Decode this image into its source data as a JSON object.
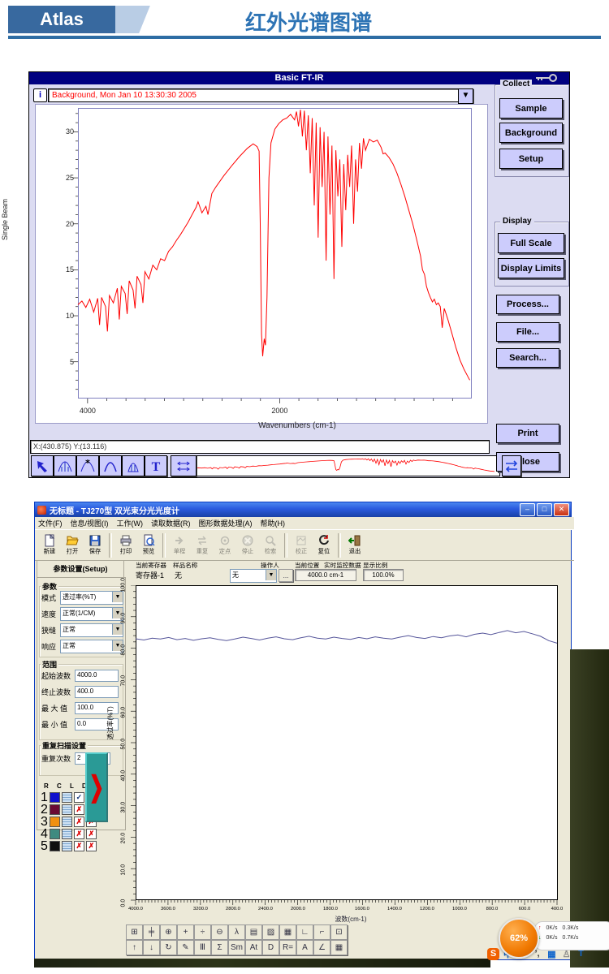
{
  "header": {
    "logo": "Atlas",
    "title": "红外光谱图谱"
  },
  "ftir": {
    "window_title": "Basic FT-IR",
    "info_button": "i",
    "spectrum_field": "Background, Mon Jan 10 13:30:30 2005",
    "status": "X:(430.875) Y:(13.116)",
    "axis": {
      "ylabel": "Single Beam",
      "xlabel": "Wavenumbers (cm-1)"
    },
    "groups": [
      {
        "label": "Collect",
        "buttons": [
          "Sample",
          "Background",
          "Setup"
        ]
      },
      {
        "label": "Display",
        "buttons": [
          "Full Scale",
          "Display Limits"
        ]
      }
    ],
    "side_buttons": [
      "Process...",
      "File...",
      "Search..."
    ],
    "bottom_buttons": [
      "Print",
      "Close"
    ],
    "toolbar_icons": [
      "cursor-arrow",
      "peak-hatched",
      "peak-pick",
      "peak-outline",
      "peak-filled",
      "text-tool",
      "expand-x"
    ],
    "swap_icon": "swap-arrows"
  },
  "tj270": {
    "window_title": "无标题 - TJ270型 双光束分光光度计",
    "caption_buttons": [
      "–",
      "□",
      "✕"
    ],
    "menu": [
      "文件(F)",
      "信息/视图(I)",
      "工作(W)",
      "读取数据(R)",
      "图形数据处理(A)",
      "帮助(H)"
    ],
    "toolbar": [
      {
        "label": "新建",
        "icon": "new",
        "enabled": true
      },
      {
        "label": "打开",
        "icon": "open",
        "enabled": true
      },
      {
        "label": "保存",
        "icon": "save",
        "enabled": true
      },
      {
        "label": "打印",
        "icon": "print",
        "enabled": true
      },
      {
        "label": "预览",
        "icon": "preview",
        "enabled": true
      },
      {
        "label": "单程",
        "icon": "single",
        "enabled": false
      },
      {
        "label": "重复",
        "icon": "repeat",
        "enabled": false
      },
      {
        "label": "定点",
        "icon": "fixpoint",
        "enabled": false
      },
      {
        "label": "停止",
        "icon": "stop",
        "enabled": false
      },
      {
        "label": "检索",
        "icon": "search",
        "enabled": false
      },
      {
        "label": "校正",
        "icon": "calibrate",
        "enabled": false
      },
      {
        "label": "复位",
        "icon": "reset",
        "enabled": true
      },
      {
        "label": "退出",
        "icon": "exit",
        "enabled": true
      }
    ],
    "info": {
      "tab": "参数设置(Setup)",
      "headers": [
        "当前寄存器",
        "样品名称",
        "操作人",
        "当前位置",
        "实时监控数据",
        "显示比例"
      ],
      "register": "寄存器-1",
      "sample_name": "无",
      "operator": "无",
      "more_button": "...",
      "position": "4000.0 cm-1",
      "scale": "100.0%"
    },
    "params": {
      "title": "参数",
      "mode_label": "模式",
      "mode_value": "透过率(%T)",
      "speed_label": "速度",
      "speed_value": "正常(1/CM)",
      "slit_label": "狭缝",
      "slit_value": "正常",
      "response_label": "响应",
      "response_value": "正常",
      "range_title": "范围",
      "start_label": "起始波数",
      "start_value": "4000.0",
      "end_label": "终止波数",
      "end_value": "400.0",
      "max_label": "最 大 值",
      "max_value": "100.0",
      "min_label": "最 小 值",
      "min_value": "0.0",
      "repeat_title": "重复扫描设置",
      "repeat_label": "重复次数",
      "repeat_value": "2"
    },
    "register_table": {
      "columns": [
        "R",
        "C",
        "L",
        "D",
        "S"
      ],
      "rows": [
        {
          "n": "1",
          "color": "#1010cc",
          "d": "check",
          "s": "check"
        },
        {
          "n": "2",
          "color": "#6a0a33",
          "d": "x",
          "s": "x"
        },
        {
          "n": "3",
          "color": "#f09010",
          "d": "x",
          "s": "x"
        },
        {
          "n": "4",
          "color": "#3f8a80",
          "d": "x",
          "s": "x"
        },
        {
          "n": "5",
          "color": "#101010",
          "d": "x",
          "s": "x"
        }
      ]
    },
    "mini_toolbar_row1": [
      "⊞",
      "╪",
      "⊕",
      "+",
      "÷",
      "⊖",
      "λ",
      "▤",
      "▨",
      "▦",
      "∟",
      "⌐",
      "⊡"
    ],
    "mini_toolbar_row2": [
      "↑",
      "↓",
      "↻",
      "✎",
      "Ⅲ",
      "Σ",
      "Sm",
      "At",
      "D",
      "R=",
      "A",
      "∠",
      "▦"
    ]
  },
  "net_monitor": {
    "percent": "62%",
    "up1": "0K/s",
    "up2": "0.3K/s",
    "down1": "0K/s",
    "down2": "0.7K/s"
  },
  "tray_icons": [
    {
      "name": "sogou-logo-icon",
      "glyph": "S"
    },
    {
      "name": "chinese-mode-icon",
      "glyph": "中"
    },
    {
      "name": "fullhalf-moon-icon",
      "glyph": "☽"
    },
    {
      "name": "punctuation-icon",
      "glyph": "’,"
    },
    {
      "name": "soft-keyboard-icon",
      "glyph": "▦"
    },
    {
      "name": "person-icon",
      "glyph": "♙"
    },
    {
      "name": "skin-icon",
      "glyph": "T"
    }
  ],
  "chart_data": [
    {
      "id": "ftir_background_spectrum",
      "type": "line",
      "title": "Background, Mon Jan 10 13:30:30 2005",
      "xlabel": "Wavenumbers (cm-1)",
      "ylabel": "Single Beam",
      "xlim": [
        4100,
        0
      ],
      "ylim": [
        1,
        32.6
      ],
      "x_ticks_labeled": [
        "4000",
        "2000"
      ],
      "y_ticks_labeled": [
        "30",
        "25",
        "20",
        "15",
        "10",
        "5"
      ],
      "y_tick_values": [
        30,
        25,
        20,
        15,
        10,
        5
      ],
      "line_color": "#ff0000",
      "grid": false,
      "points": [
        [
          4100,
          11.2
        ],
        [
          4059,
          11.6
        ],
        [
          4018,
          10.9
        ],
        [
          3977,
          11.8
        ],
        [
          3936,
          10.4
        ],
        [
          3895,
          11.9
        ],
        [
          3875,
          9.0
        ],
        [
          3854,
          12.0
        ],
        [
          3813,
          11.0
        ],
        [
          3793,
          8.3
        ],
        [
          3772,
          12.2
        ],
        [
          3731,
          11.4
        ],
        [
          3690,
          13.0
        ],
        [
          3670,
          9.6
        ],
        [
          3649,
          13.2
        ],
        [
          3608,
          12.4
        ],
        [
          3588,
          10.2
        ],
        [
          3567,
          13.8
        ],
        [
          3526,
          12.8
        ],
        [
          3506,
          10.8
        ],
        [
          3485,
          14.3
        ],
        [
          3444,
          13.4
        ],
        [
          3424,
          11.4
        ],
        [
          3403,
          14.8
        ],
        [
          3362,
          14.0
        ],
        [
          3321,
          15.5
        ],
        [
          3280,
          15.0
        ],
        [
          3239,
          16.2
        ],
        [
          3198,
          16.0
        ],
        [
          3157,
          17.0
        ],
        [
          3116,
          17.5
        ],
        [
          3075,
          18.2
        ],
        [
          3034,
          18.8
        ],
        [
          2993,
          19.5
        ],
        [
          2952,
          20.2
        ],
        [
          2911,
          21.0
        ],
        [
          2870,
          21.8
        ],
        [
          2850,
          22.4
        ],
        [
          2809,
          21.2
        ],
        [
          2768,
          21.9
        ],
        [
          2747,
          21.0
        ],
        [
          2706,
          23.3
        ],
        [
          2665,
          24.0
        ],
        [
          2583,
          25.2
        ],
        [
          2501,
          26.3
        ],
        [
          2419,
          27.3
        ],
        [
          2337,
          28.2
        ],
        [
          2276,
          28.7
        ],
        [
          2235,
          28.4
        ],
        [
          2214,
          27.9
        ],
        [
          2202,
          20.0
        ],
        [
          2189,
          8.0
        ],
        [
          2177,
          5.6
        ],
        [
          2161,
          7.5
        ],
        [
          2148,
          6.8
        ],
        [
          2132,
          12.0
        ],
        [
          2112,
          25.0
        ],
        [
          2091,
          28.8
        ],
        [
          2050,
          30.3
        ],
        [
          2009,
          30.9
        ],
        [
          1968,
          31.3
        ],
        [
          1927,
          31.5
        ],
        [
          1886,
          31.9
        ],
        [
          1845,
          31.3
        ],
        [
          1825,
          32.2
        ],
        [
          1804,
          30.6
        ],
        [
          1784,
          32.4
        ],
        [
          1763,
          29.5
        ],
        [
          1743,
          32.3
        ],
        [
          1722,
          28.0
        ],
        [
          1702,
          31.8
        ],
        [
          1681,
          25.5
        ],
        [
          1661,
          31.5
        ],
        [
          1640,
          22.0
        ],
        [
          1620,
          31.0
        ],
        [
          1599,
          18.5
        ],
        [
          1579,
          30.5
        ],
        [
          1558,
          24.0
        ],
        [
          1538,
          30.0
        ],
        [
          1517,
          16.0
        ],
        [
          1497,
          29.5
        ],
        [
          1476,
          21.0
        ],
        [
          1456,
          28.5
        ],
        [
          1435,
          14.0
        ],
        [
          1415,
          28.0
        ],
        [
          1394,
          23.0
        ],
        [
          1374,
          27.0
        ],
        [
          1353,
          17.5
        ],
        [
          1333,
          26.5
        ],
        [
          1312,
          21.5
        ],
        [
          1292,
          27.5
        ],
        [
          1271,
          24.0
        ],
        [
          1251,
          28.5
        ],
        [
          1230,
          20.0
        ],
        [
          1210,
          27.0
        ],
        [
          1189,
          23.5
        ],
        [
          1169,
          28.8
        ],
        [
          1148,
          26.0
        ],
        [
          1128,
          29.3
        ],
        [
          1107,
          28.0
        ],
        [
          1066,
          29.2
        ],
        [
          1025,
          28.9
        ],
        [
          984,
          29.1
        ],
        [
          943,
          28.3
        ],
        [
          923,
          27.6
        ],
        [
          902,
          27.7
        ],
        [
          861,
          27.2
        ],
        [
          820,
          26.5
        ],
        [
          779,
          25.5
        ],
        [
          738,
          24.3
        ],
        [
          697,
          23.0
        ],
        [
          656,
          21.5
        ],
        [
          615,
          20.0
        ],
        [
          574,
          18.3
        ],
        [
          533,
          16.5
        ],
        [
          513,
          15.0
        ],
        [
          492,
          14.5
        ],
        [
          472,
          13.2
        ],
        [
          451,
          12.5
        ],
        [
          431,
          12.0
        ],
        [
          410,
          11.5
        ],
        [
          390,
          11.8
        ],
        [
          369,
          11.2
        ],
        [
          349,
          11.4
        ],
        [
          328,
          11.0
        ],
        [
          308,
          8.7
        ],
        [
          287,
          10.8
        ],
        [
          267,
          10.2
        ],
        [
          246,
          9.5
        ],
        [
          205,
          8.0
        ],
        [
          164,
          6.5
        ],
        [
          123,
          5.2
        ],
        [
          82,
          4.2
        ],
        [
          41,
          3.4
        ],
        [
          21,
          3.0
        ]
      ]
    },
    {
      "id": "tj270_realtime_monitor",
      "type": "line",
      "xlabel": "波数(cm-1)",
      "ylabel": "透过率(%T)",
      "ylim": [
        0,
        100
      ],
      "y_ticks_labeled": [
        "100.0",
        "90.0",
        "80.0",
        "70.0",
        "60.0",
        "50.0",
        "40.0",
        "30.0",
        "20.0",
        "10.0",
        "0.0"
      ],
      "x_ticks_labeled": [
        "4000.0",
        "3600.0",
        "3200.0",
        "2800.0",
        "2400.0",
        "2000.0",
        "1800.0",
        "1600.0",
        "1400.0",
        "1200.0",
        "1000.0",
        "800.0",
        "600.0",
        "400.0"
      ],
      "x_axis_note": "nonlinear wavenumber axis, evenly spaced ticks",
      "line_color": "#55559a",
      "grid": false,
      "values_percentT": [
        83.0,
        82.6,
        83.2,
        82.9,
        83.4,
        82.7,
        83.1,
        82.5,
        83.0,
        83.3,
        82.8,
        82.4,
        82.9,
        83.5,
        83.1,
        82.6,
        83.2,
        83.6,
        83.0,
        82.7,
        83.3,
        83.8,
        83.2,
        82.9,
        83.5,
        83.1,
        82.8,
        83.4,
        83.0,
        83.6,
        83.2,
        82.9,
        83.5,
        84.0,
        83.4,
        83.1,
        83.7,
        83.3,
        83.9,
        84.2,
        83.6,
        84.4,
        84.8,
        84.3,
        85.0,
        85.6,
        84.9,
        85.3,
        84.6,
        83.8,
        82.4,
        81.6
      ]
    }
  ]
}
